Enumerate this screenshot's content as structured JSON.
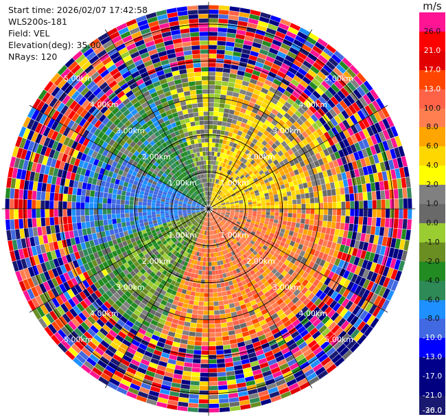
{
  "header": {
    "start_time": "Start time: 2026/02/07 17:42:58",
    "instrument": "WLS200s-181",
    "field": "Field: VEL",
    "elevation": "Elevation(deg): 35.00",
    "nrays": "NRays: 120"
  },
  "colorbar": {
    "unit": "m/s",
    "ticks": [
      "26.0",
      "21.0",
      "17.0",
      "13.0",
      "10.0",
      "8.0",
      "6.0",
      "4.0",
      "2.0",
      "1.0",
      "0.0",
      "-1.0",
      "-2.0",
      "-4.0",
      "-6.0",
      "-8.0",
      "-10.0",
      "-13.0",
      "-17.0",
      "-21.0",
      "-26.0",
      "-30.0"
    ],
    "colors": [
      "#ff1493",
      "#ff0000",
      "#e30000",
      "#ff4500",
      "#ff6347",
      "#ff7f50",
      "#ffa500",
      "#ffd700",
      "#ffff00",
      "#808080",
      "#696969",
      "#9acd32",
      "#6b8e23",
      "#228b22",
      "#2e8b57",
      "#1e90ff",
      "#4169e1",
      "#0000ff",
      "#00008b",
      "#000080",
      "#191970"
    ]
  },
  "chart_data": {
    "type": "heatmap",
    "projection": "polar-ppi",
    "field": "VEL",
    "nrays": 120,
    "elevation_deg": 35.0,
    "range_rings_km": [
      1.0,
      2.0,
      3.0,
      4.0,
      5.0
    ],
    "range_labels": [
      "1.00km",
      "2.00km",
      "3.00km",
      "4.00km",
      "5.00km"
    ],
    "spokes_deg": [
      0,
      30,
      60,
      90,
      120,
      150,
      180,
      210,
      240,
      270,
      300,
      330
    ],
    "max_range_km": 5.6,
    "vmin": -30.0,
    "vmax": 26.0,
    "sectors": [
      {
        "from_az": 330,
        "to_az": 30,
        "inner_value": -0.5,
        "note": "near-zero grey"
      },
      {
        "from_az": 10,
        "to_az": 90,
        "inner_value": 3.0
      },
      {
        "from_az": 90,
        "to_az": 200,
        "inner_value": 7.0
      },
      {
        "from_az": 200,
        "to_az": 250,
        "inner_value": -3.0
      },
      {
        "from_az": 250,
        "to_az": 300,
        "inner_value": -10.0
      },
      {
        "from_az": 300,
        "to_az": 340,
        "inner_value": -6.0
      }
    ],
    "noisy_beyond_km": 3.7
  }
}
